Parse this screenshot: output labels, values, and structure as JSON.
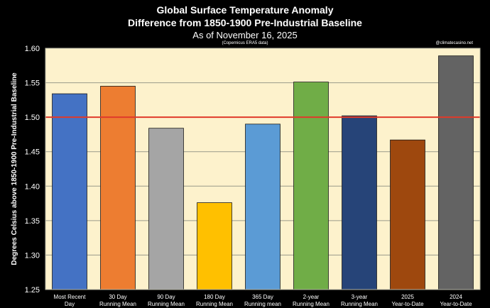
{
  "chart_data": {
    "type": "bar",
    "title": "Global Surface Temperature Anomaly",
    "subtitle": "Difference from 1850-1900 Pre-Industrial Baseline",
    "date_line": "As of November 16, 2025",
    "source_note": "(Copernicus ERA5 data)",
    "credit": "@climatecasino.net",
    "ylabel": "Degrees Celsius above 1850-1900 Pre-Industrial Baseline",
    "xlabel": "",
    "ylim": [
      1.25,
      1.6
    ],
    "yticks": [
      "1.25",
      "1.30",
      "1.35",
      "1.40",
      "1.45",
      "1.50",
      "1.55",
      "1.60"
    ],
    "ytick_values": [
      1.25,
      1.3,
      1.35,
      1.4,
      1.45,
      1.5,
      1.55,
      1.6
    ],
    "grid": true,
    "reference_line": {
      "value": 1.5,
      "color": "#e03a2a"
    },
    "categories": [
      [
        "Most Recent",
        "Day"
      ],
      [
        "30 Day",
        "Running Mean"
      ],
      [
        "90 Day",
        "Running Mean"
      ],
      [
        "180 Day",
        "Running Mean"
      ],
      [
        "365 Day",
        "Running mean"
      ],
      [
        "2-year",
        "Running Mean"
      ],
      [
        "3-year",
        "Running Mean"
      ],
      [
        "2025",
        "Year-to-Date"
      ],
      [
        "2024",
        "Year-to-Date"
      ]
    ],
    "values": [
      1.534,
      1.545,
      1.484,
      1.376,
      1.49,
      1.551,
      1.502,
      1.467,
      1.589
    ],
    "colors": [
      "#4472c4",
      "#ed7d31",
      "#a5a5a5",
      "#ffc000",
      "#5b9bd5",
      "#70ad47",
      "#264478",
      "#9e480e",
      "#636363"
    ],
    "plot_background": "#fdf2cc",
    "text_color": "#ffffff",
    "page_background": "#000000"
  }
}
